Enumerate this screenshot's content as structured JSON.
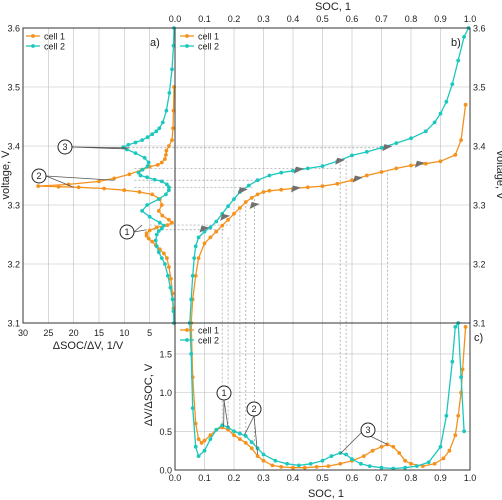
{
  "colors": {
    "cell1": "#F5921E",
    "cell2": "#1CC8BE",
    "axis": "#333333",
    "grid": "#bfbfbf",
    "guide": "#9a9a9a",
    "arrow": "#707070"
  },
  "chart_data": [
    {
      "panel": "a)",
      "type": "line",
      "xlabel": "ΔSOC/ΔV, 1/V",
      "ylabel": "voltage, V",
      "xlim": [
        30,
        0
      ],
      "x_reversed": true,
      "ylim": [
        3.1,
        3.6
      ],
      "x_ticks": [
        30,
        25,
        20,
        15,
        10,
        5
      ],
      "y_ticks": [
        "3.1",
        "3.2",
        "3.3",
        "3.4",
        "3.5",
        "3.6"
      ],
      "legend": "top-left",
      "series": [
        {
          "name": "cell 1",
          "x": [
            0.2,
            0.3,
            0.5,
            0.8,
            1.2,
            1.6,
            2.2,
            3.0,
            3.8,
            4.5,
            5.2,
            5.6,
            5.6,
            5.0,
            3.6,
            1.5,
            0.6,
            1.2,
            2.5,
            3.2,
            2.6,
            3.0,
            4.5,
            7.0,
            10.0,
            14.0,
            19.0,
            23.0,
            27.0,
            21.0,
            15.0,
            12.0,
            9.0,
            6.5,
            5.0,
            3.4,
            2.6,
            2.0,
            1.8,
            1.7,
            1.2,
            0.6,
            0.4,
            0.3,
            0.2
          ],
          "y": [
            3.1,
            3.125,
            3.15,
            3.175,
            3.195,
            3.21,
            3.218,
            3.225,
            3.232,
            3.238,
            3.243,
            3.248,
            3.252,
            3.257,
            3.262,
            3.266,
            3.27,
            3.275,
            3.282,
            3.29,
            3.3,
            3.31,
            3.318,
            3.322,
            3.325,
            3.328,
            3.33,
            3.331,
            3.332,
            3.335,
            3.34,
            3.345,
            3.352,
            3.36,
            3.365,
            3.368,
            3.372,
            3.378,
            3.385,
            3.392,
            3.4,
            3.41,
            3.43,
            3.46,
            3.5
          ]
        },
        {
          "name": "cell 2",
          "x": [
            0.2,
            0.3,
            0.5,
            0.9,
            1.4,
            2.0,
            2.6,
            3.2,
            3.6,
            3.8,
            3.6,
            3.2,
            2.6,
            2.2,
            3.0,
            5.0,
            6.5,
            5.5,
            3.2,
            1.8,
            1.2,
            1.2,
            1.6,
            2.6,
            4.0,
            5.5,
            6.8,
            7.2,
            6.4,
            5.4,
            5.2,
            6.0,
            7.8,
            9.5,
            10.2,
            9.2,
            7.8,
            6.5,
            5.4,
            4.5,
            3.7,
            3.1,
            2.4,
            1.7,
            1.1,
            0.6,
            0.3,
            0.2
          ],
          "y": [
            3.1,
            3.12,
            3.14,
            3.16,
            3.18,
            3.2,
            3.21,
            3.22,
            3.23,
            3.24,
            3.25,
            3.256,
            3.26,
            3.265,
            3.27,
            3.28,
            3.29,
            3.3,
            3.31,
            3.318,
            3.325,
            3.33,
            3.335,
            3.34,
            3.343,
            3.347,
            3.35,
            3.355,
            3.36,
            3.366,
            3.372,
            3.38,
            3.388,
            3.394,
            3.398,
            3.402,
            3.406,
            3.41,
            3.415,
            3.42,
            3.425,
            3.43,
            3.44,
            3.46,
            3.49,
            3.53,
            3.57,
            3.6
          ]
        }
      ],
      "annotations": [
        "1",
        "2",
        "3"
      ]
    },
    {
      "panel": "b)",
      "type": "line",
      "xlabel": "SOC, 1",
      "ylabel": "voltage, V",
      "xlim": [
        0.0,
        1.0
      ],
      "ylim": [
        3.1,
        3.6
      ],
      "x_ticks": [
        "0.0",
        "0.1",
        "0.2",
        "0.3",
        "0.4",
        "0.5",
        "0.6",
        "0.7",
        "0.8",
        "0.9",
        "1.0"
      ],
      "y_ticks": [
        "3.1",
        "3.2",
        "3.3",
        "3.4",
        "3.5",
        "3.6"
      ],
      "legend": "top-left",
      "series": [
        {
          "name": "cell 1",
          "x": [
            0.055,
            0.06,
            0.07,
            0.08,
            0.1,
            0.12,
            0.14,
            0.16,
            0.18,
            0.2,
            0.22,
            0.24,
            0.26,
            0.28,
            0.3,
            0.32,
            0.36,
            0.4,
            0.45,
            0.5,
            0.55,
            0.6,
            0.65,
            0.7,
            0.75,
            0.8,
            0.85,
            0.9,
            0.95,
            0.97,
            0.985
          ],
          "y": [
            3.1,
            3.14,
            3.18,
            3.21,
            3.235,
            3.245,
            3.255,
            3.265,
            3.275,
            3.285,
            3.295,
            3.305,
            3.312,
            3.318,
            3.322,
            3.324,
            3.326,
            3.328,
            3.33,
            3.332,
            3.336,
            3.342,
            3.35,
            3.356,
            3.362,
            3.367,
            3.37,
            3.374,
            3.385,
            3.41,
            3.47
          ]
        },
        {
          "name": "cell 2",
          "x": [
            0.05,
            0.055,
            0.06,
            0.065,
            0.07,
            0.08,
            0.1,
            0.12,
            0.14,
            0.16,
            0.18,
            0.2,
            0.22,
            0.25,
            0.28,
            0.32,
            0.36,
            0.4,
            0.45,
            0.5,
            0.55,
            0.6,
            0.65,
            0.7,
            0.75,
            0.8,
            0.85,
            0.88,
            0.9,
            0.92,
            0.94,
            0.96,
            0.98,
            0.995
          ],
          "y": [
            3.1,
            3.14,
            3.18,
            3.21,
            3.23,
            3.245,
            3.255,
            3.262,
            3.272,
            3.285,
            3.298,
            3.31,
            3.322,
            3.333,
            3.342,
            3.35,
            3.355,
            3.358,
            3.362,
            3.366,
            3.374,
            3.384,
            3.39,
            3.397,
            3.405,
            3.413,
            3.425,
            3.44,
            3.455,
            3.475,
            3.505,
            3.545,
            3.585,
            3.6
          ]
        }
      ]
    },
    {
      "panel": "c)",
      "type": "line",
      "xlabel": "SOC, 1",
      "ylabel": "ΔV/ΔSOC, V",
      "xlim": [
        0.0,
        1.0
      ],
      "ylim": [
        0.0,
        1.9
      ],
      "x_ticks": [
        "0.0",
        "0.1",
        "0.2",
        "0.3",
        "0.4",
        "0.5",
        "0.6",
        "0.7",
        "0.8",
        "0.9",
        "1.0"
      ],
      "y_ticks": [
        "0.0",
        "0.5",
        "1.0",
        "1.5"
      ],
      "legend": "top-left",
      "series": [
        {
          "name": "cell 1",
          "x": [
            0.055,
            0.06,
            0.07,
            0.08,
            0.09,
            0.1,
            0.12,
            0.14,
            0.16,
            0.18,
            0.2,
            0.22,
            0.24,
            0.26,
            0.28,
            0.3,
            0.33,
            0.36,
            0.4,
            0.44,
            0.48,
            0.52,
            0.56,
            0.6,
            0.64,
            0.67,
            0.7,
            0.72,
            0.74,
            0.76,
            0.78,
            0.8,
            0.84,
            0.88,
            0.91,
            0.93,
            0.95,
            0.96,
            0.97,
            0.975,
            0.985
          ],
          "y": [
            1.9,
            1.2,
            0.6,
            0.4,
            0.35,
            0.38,
            0.45,
            0.52,
            0.55,
            0.52,
            0.45,
            0.4,
            0.35,
            0.28,
            0.18,
            0.12,
            0.06,
            0.04,
            0.03,
            0.03,
            0.04,
            0.05,
            0.08,
            0.12,
            0.18,
            0.25,
            0.3,
            0.33,
            0.3,
            0.22,
            0.12,
            0.08,
            0.05,
            0.08,
            0.15,
            0.25,
            0.45,
            0.7,
            1.0,
            1.3,
            1.85
          ]
        },
        {
          "name": "cell 2",
          "x": [
            0.05,
            0.055,
            0.06,
            0.07,
            0.08,
            0.1,
            0.12,
            0.14,
            0.16,
            0.18,
            0.2,
            0.22,
            0.24,
            0.26,
            0.28,
            0.3,
            0.34,
            0.38,
            0.42,
            0.46,
            0.5,
            0.53,
            0.56,
            0.58,
            0.6,
            0.63,
            0.66,
            0.7,
            0.74,
            0.78,
            0.82,
            0.86,
            0.9,
            0.92,
            0.94,
            0.95,
            0.96,
            0.97,
            0.98
          ],
          "y": [
            1.9,
            1.5,
            0.8,
            0.3,
            0.18,
            0.25,
            0.4,
            0.52,
            0.58,
            0.55,
            0.5,
            0.47,
            0.44,
            0.36,
            0.28,
            0.2,
            0.12,
            0.08,
            0.06,
            0.08,
            0.12,
            0.18,
            0.22,
            0.2,
            0.14,
            0.08,
            0.05,
            0.03,
            0.02,
            0.03,
            0.05,
            0.1,
            0.3,
            0.7,
            1.4,
            1.85,
            1.9,
            1.2,
            0.5
          ]
        }
      ],
      "annotations": [
        "1",
        "2",
        "3"
      ]
    }
  ]
}
